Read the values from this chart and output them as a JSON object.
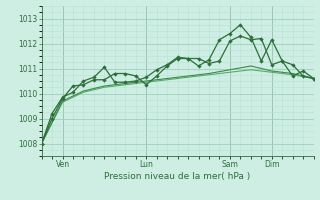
{
  "background_color": "#ceeee4",
  "grid_color_major": "#9ecfbf",
  "grid_color_minor": "#b8e0d4",
  "line_color_dark": "#2d6e3a",
  "line_color_mid": "#3a8a4a",
  "line_color_light": "#5aaa6a",
  "xlabel": "Pression niveau de la mer( hPa )",
  "ylim": [
    1007.5,
    1013.5
  ],
  "xlim": [
    0,
    78
  ],
  "yticks": [
    1008,
    1009,
    1010,
    1011,
    1012,
    1013
  ],
  "vlines_x": [
    6,
    30,
    54,
    66
  ],
  "xtick_positions": [
    6,
    30,
    54,
    66
  ],
  "xtick_labels": [
    "Ven",
    "Lun",
    "Sam",
    "Dim"
  ],
  "series1_smooth": {
    "x": [
      0,
      6,
      12,
      18,
      24,
      30,
      36,
      42,
      48,
      54,
      60,
      66,
      72,
      78
    ],
    "y": [
      1008.0,
      1009.65,
      1010.05,
      1010.25,
      1010.35,
      1010.45,
      1010.55,
      1010.65,
      1010.75,
      1010.85,
      1010.95,
      1010.85,
      1010.75,
      1010.6
    ]
  },
  "series2_smooth": {
    "x": [
      0,
      6,
      12,
      18,
      24,
      30,
      36,
      42,
      48,
      54,
      60,
      66,
      72,
      78
    ],
    "y": [
      1008.0,
      1009.7,
      1010.1,
      1010.3,
      1010.4,
      1010.5,
      1010.6,
      1010.7,
      1010.8,
      1010.95,
      1011.1,
      1010.9,
      1010.8,
      1010.6
    ]
  },
  "series3_markers": {
    "x": [
      0,
      3,
      6,
      9,
      12,
      15,
      18,
      21,
      24,
      27,
      30,
      33,
      36,
      39,
      42,
      45,
      48,
      51,
      54,
      57,
      60,
      63,
      66,
      69,
      72,
      75,
      78
    ],
    "y": [
      1008.0,
      1009.0,
      1009.8,
      1010.3,
      1010.35,
      1010.55,
      1010.55,
      1010.8,
      1010.8,
      1010.7,
      1010.35,
      1010.7,
      1011.1,
      1011.4,
      1011.4,
      1011.4,
      1011.2,
      1011.3,
      1012.1,
      1012.3,
      1012.15,
      1012.2,
      1011.15,
      1011.3,
      1011.15,
      1010.7,
      1010.6
    ]
  },
  "series4_markers": {
    "x": [
      0,
      3,
      6,
      9,
      12,
      15,
      18,
      21,
      24,
      27,
      30,
      33,
      36,
      39,
      42,
      45,
      48,
      51,
      54,
      57,
      60,
      63,
      66,
      69,
      72,
      75,
      78
    ],
    "y": [
      1008.0,
      1009.2,
      1009.85,
      1010.05,
      1010.5,
      1010.65,
      1011.05,
      1010.45,
      1010.45,
      1010.5,
      1010.65,
      1010.95,
      1011.15,
      1011.45,
      1011.4,
      1011.1,
      1011.35,
      1012.15,
      1012.4,
      1012.75,
      1012.25,
      1011.3,
      1012.15,
      1011.3,
      1010.7,
      1010.9,
      1010.6
    ]
  }
}
